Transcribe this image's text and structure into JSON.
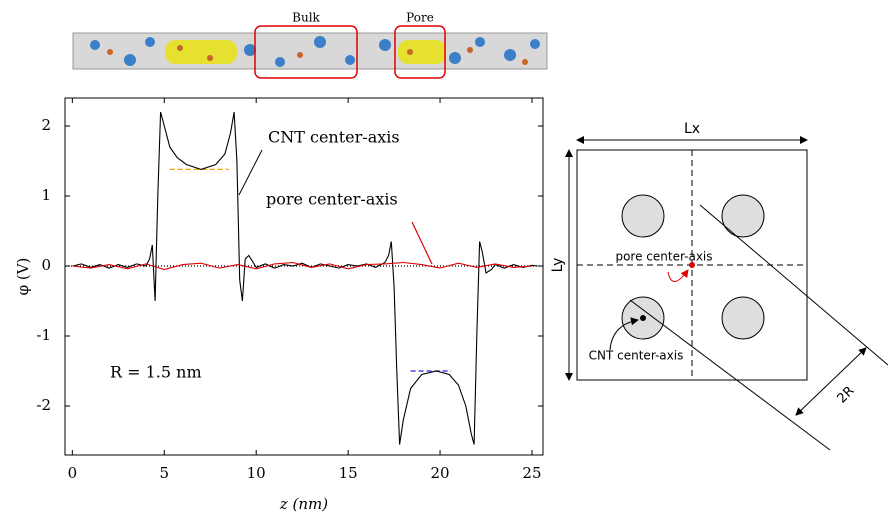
{
  "chart_data": {
    "type": "line",
    "x_label": "z (nm)",
    "y_label": "φ (V)",
    "xlim": [
      -0.4,
      25.6
    ],
    "ylim": [
      -2.7,
      2.4
    ],
    "xticks": [
      0,
      5,
      10,
      15,
      20,
      25
    ],
    "yticks": [
      -2,
      -1,
      0,
      1,
      2
    ],
    "series": [
      {
        "name": "CNT center-axis",
        "color": "#000000",
        "x": [
          0,
          0.5,
          1,
          1.5,
          2,
          2.5,
          3,
          3.5,
          4,
          4.2,
          4.35,
          4.5,
          4.65,
          4.8,
          5.0,
          5.3,
          5.7,
          6.2,
          7,
          7.8,
          8.3,
          8.6,
          8.8,
          8.95,
          9.1,
          9.25,
          9.4,
          9.6,
          10,
          10.5,
          11,
          11.5,
          12,
          12.5,
          13,
          13.5,
          14,
          14.5,
          15,
          15.5,
          16,
          16.5,
          17,
          17.2,
          17.35,
          17.5,
          17.65,
          17.8,
          18.0,
          18.4,
          19,
          19.8,
          20.5,
          21,
          21.4,
          21.7,
          21.85,
          22.0,
          22.15,
          22.3,
          22.5,
          22.8,
          23,
          23.5,
          24,
          24.5,
          25,
          25.3
        ],
        "values": [
          0,
          0.03,
          -0.02,
          0.02,
          -0.03,
          0.02,
          -0.02,
          0.03,
          0,
          0.1,
          0.3,
          -0.5,
          1.0,
          2.2,
          2.0,
          1.7,
          1.55,
          1.45,
          1.38,
          1.45,
          1.6,
          1.9,
          2.2,
          1.5,
          -0.2,
          -0.5,
          0.1,
          0.15,
          -0.02,
          0.03,
          -0.03,
          0.02,
          0,
          0.04,
          -0.02,
          0.03,
          0,
          -0.03,
          0.02,
          0,
          0.03,
          -0.02,
          0.05,
          0.15,
          0.35,
          -0.3,
          -1.5,
          -2.55,
          -2.2,
          -1.75,
          -1.55,
          -1.5,
          -1.55,
          -1.7,
          -2.0,
          -2.4,
          -2.55,
          -1.0,
          0.35,
          0.2,
          -0.1,
          -0.05,
          0.02,
          -0.03,
          0.02,
          -0.02,
          0.01,
          0
        ]
      },
      {
        "name": "pore center-axis",
        "color": "#e00000",
        "x": [
          0,
          1,
          2,
          3,
          4,
          5,
          6,
          7,
          8,
          9,
          10,
          11,
          12,
          13,
          14,
          15,
          16,
          17,
          18,
          19,
          20,
          21,
          22,
          23,
          24,
          25
        ],
        "values": [
          0,
          -0.03,
          0.02,
          -0.04,
          0.03,
          -0.05,
          0.02,
          0.04,
          -0.03,
          0.02,
          -0.04,
          0.03,
          0.05,
          -0.02,
          0.03,
          -0.04,
          0.02,
          0.03,
          0.05,
          0.02,
          -0.03,
          0.04,
          -0.02,
          0.03,
          -0.02,
          0
        ]
      }
    ],
    "reference_lines": [
      {
        "y": 0,
        "color": "#000000",
        "dash": "1,2"
      },
      {
        "y": 1.38,
        "x": [
          5.3,
          8.5
        ],
        "color": "#f0a000",
        "dash": "5,3"
      },
      {
        "y": -1.5,
        "x": [
          18.4,
          20.6
        ],
        "color": "#2020e0",
        "dash": "5,3"
      }
    ],
    "annotations": [
      "CNT center-axis",
      "pore center-axis",
      "R = 1.5 nm"
    ]
  },
  "snapshot": {
    "labels": [
      "Bulk",
      "Pore"
    ]
  },
  "diagram": {
    "width_label": "Lx",
    "height_label": "Ly",
    "pore_label": "pore center-axis",
    "cnt_label": "CNT center-axis",
    "radius_label": "2R"
  }
}
